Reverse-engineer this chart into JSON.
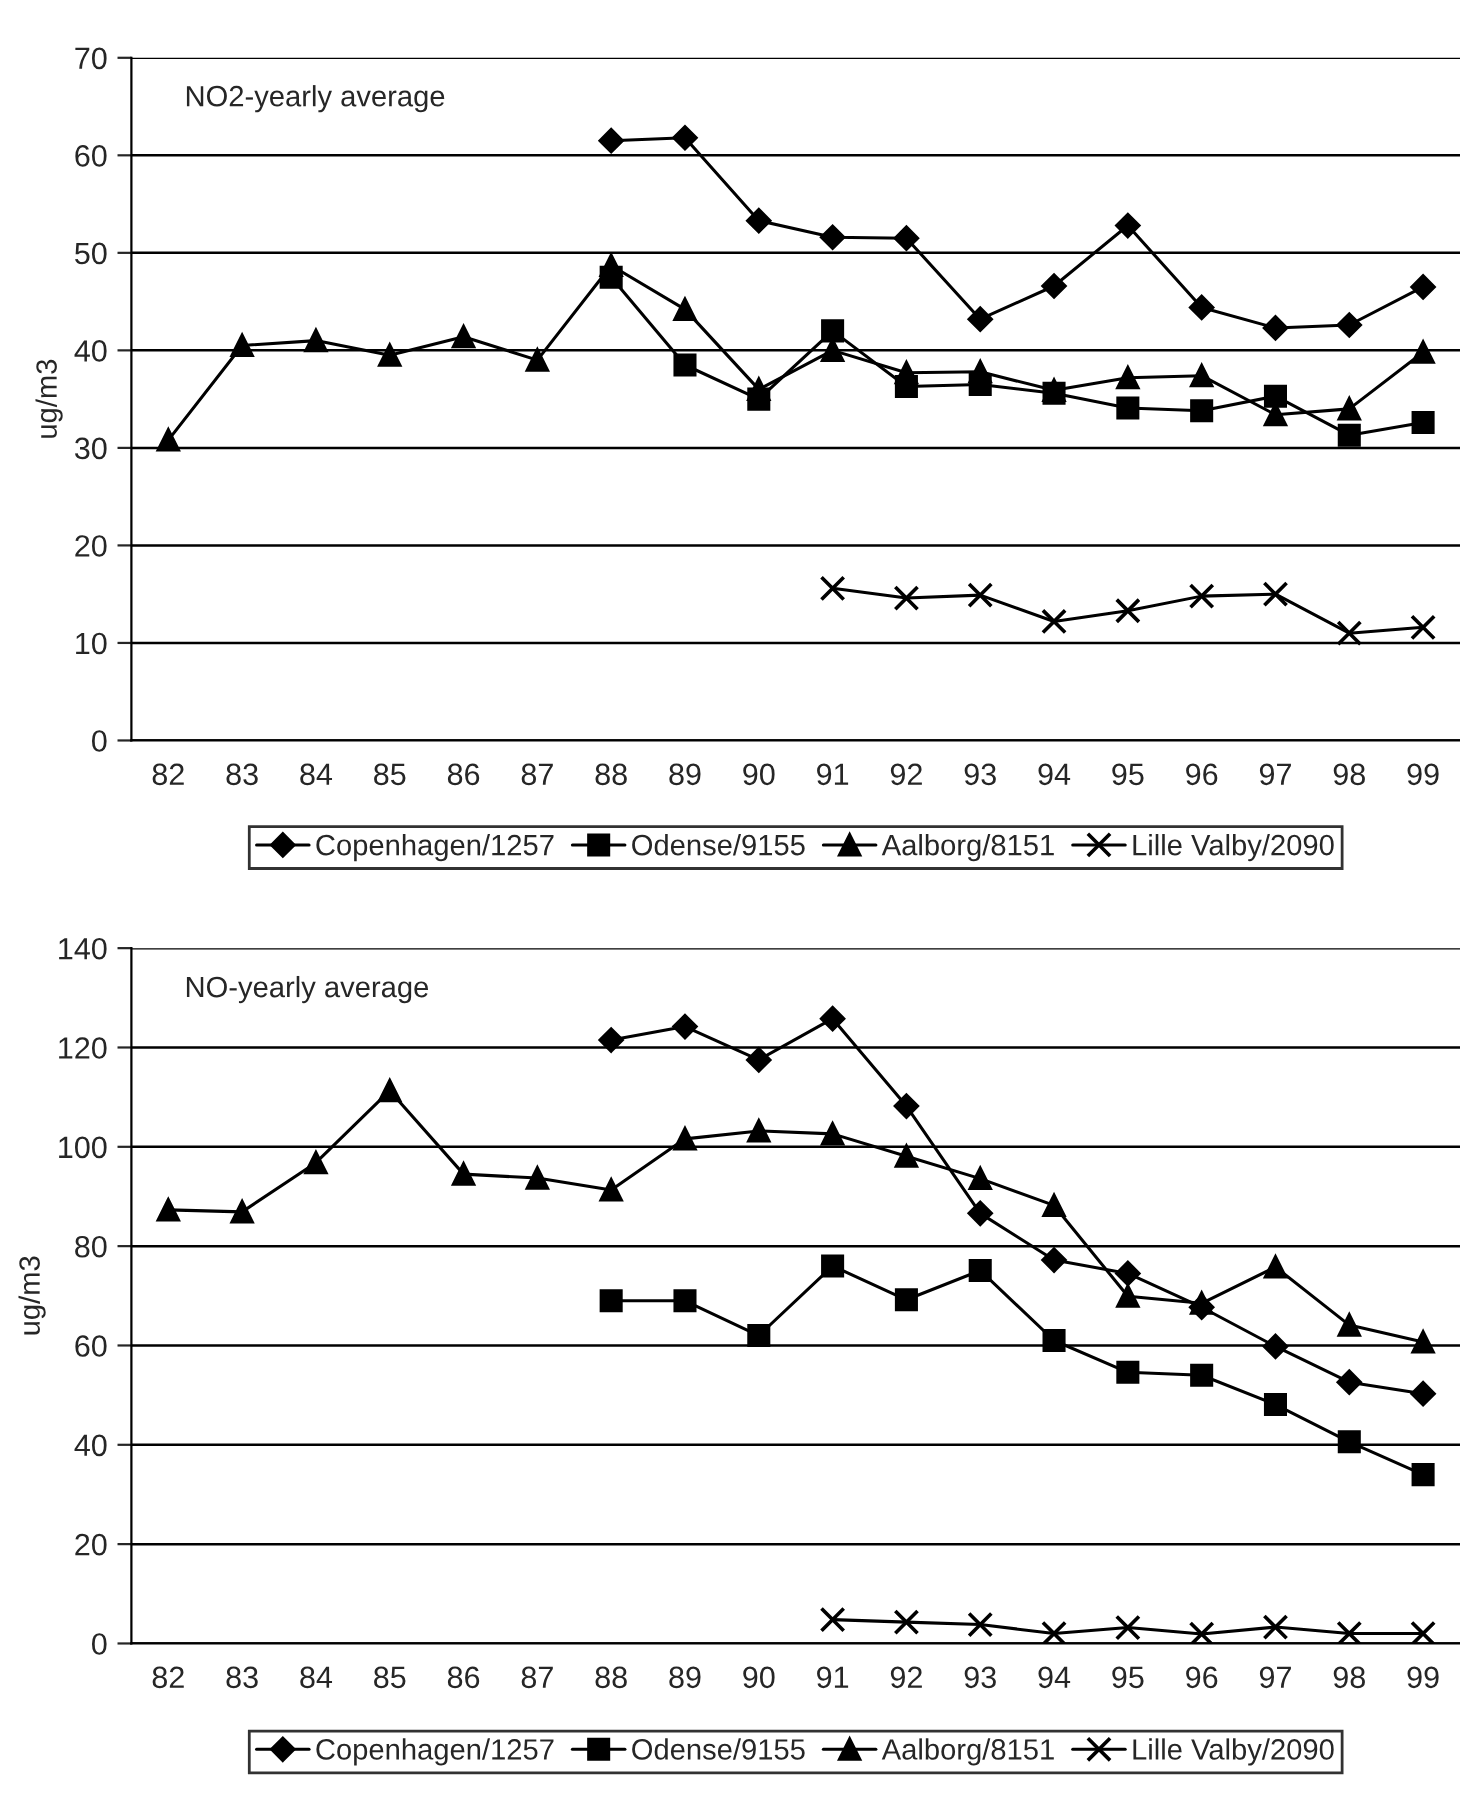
{
  "chart_data": [
    {
      "type": "line",
      "title": "NO2-yearly average",
      "ylabel": "ug/m3",
      "categories": [
        "82",
        "83",
        "84",
        "85",
        "86",
        "87",
        "88",
        "89",
        "90",
        "91",
        "92",
        "93",
        "94",
        "95",
        "96",
        "97",
        "98",
        "99"
      ],
      "series": [
        {
          "name": "Copenhagen/1257",
          "color": "#000000",
          "marker": "diamond",
          "values": [
            null,
            null,
            null,
            null,
            null,
            null,
            61.5,
            61.8,
            53.3,
            51.6,
            51.5,
            43.2,
            46.6,
            52.8,
            44.4,
            42.3,
            42.6,
            46.5
          ]
        },
        {
          "name": "Odense/9155",
          "color": "#000000",
          "marker": "square",
          "values": [
            null,
            null,
            null,
            null,
            null,
            null,
            47.5,
            38.5,
            35,
            42,
            36.3,
            36.5,
            35.6,
            34.1,
            33.8,
            35.3,
            31.3,
            32.6
          ]
        },
        {
          "name": "Aalborg/8151",
          "color": "#000000",
          "marker": "triangle",
          "values": [
            30.8,
            40.5,
            41,
            39.5,
            41.4,
            39,
            48.7,
            44.2,
            36,
            40,
            37.7,
            37.8,
            35.9,
            37.2,
            37.4,
            33.4,
            34,
            39.8
          ]
        },
        {
          "name": "Lille Valby/2090",
          "color": "#000000",
          "marker": "cross",
          "values": [
            null,
            null,
            null,
            null,
            null,
            null,
            null,
            null,
            null,
            15.6,
            14.6,
            14.9,
            12.2,
            13.3,
            14.8,
            15,
            11,
            11.6
          ]
        }
      ],
      "ylim": [
        0,
        70
      ],
      "yticks": [
        0,
        10,
        20,
        30,
        40,
        50,
        60,
        70
      ],
      "grid": "y",
      "legend": "bottom",
      "line_style": "solid"
    },
    {
      "type": "line",
      "title": "NO-yearly average",
      "ylabel": "ug/m3",
      "categories": [
        "82",
        "83",
        "84",
        "85",
        "86",
        "87",
        "88",
        "89",
        "90",
        "91",
        "92",
        "93",
        "94",
        "95",
        "96",
        "97",
        "98",
        "99"
      ],
      "series": [
        {
          "name": "Copenhagen/1257",
          "color": "#000000",
          "marker": "diamond",
          "values": [
            null,
            null,
            null,
            null,
            null,
            null,
            121.5,
            124.2,
            117.5,
            125.8,
            108.2,
            86.6,
            77.2,
            74.5,
            67.7,
            59.8,
            52.6,
            50.3
          ]
        },
        {
          "name": "Odense/9155",
          "color": "#000000",
          "marker": "square",
          "values": [
            null,
            null,
            null,
            null,
            null,
            null,
            69,
            69,
            62,
            76,
            69.2,
            75.1,
            61,
            54.6,
            54,
            48.1,
            40.6,
            34
          ]
        },
        {
          "name": "Aalborg/8151",
          "color": "#000000",
          "marker": "triangle",
          "values": [
            87.3,
            86.9,
            96.8,
            111.3,
            94.5,
            93.7,
            91.3,
            101.6,
            103.2,
            102.6,
            98.1,
            93.6,
            88.2,
            69.9,
            68.5,
            75.8,
            64.1,
            60.7
          ]
        },
        {
          "name": "Lille Valby/2090",
          "color": "#000000",
          "marker": "cross",
          "values": [
            null,
            null,
            null,
            null,
            null,
            null,
            null,
            null,
            null,
            4.8,
            4.3,
            3.8,
            2,
            3.2,
            1.9,
            3.3,
            2,
            2
          ]
        }
      ],
      "ylim": [
        0,
        140
      ],
      "yticks": [
        0,
        20,
        40,
        60,
        80,
        100,
        120,
        140
      ],
      "grid": "y",
      "legend": "bottom",
      "line_style": "solid"
    }
  ]
}
